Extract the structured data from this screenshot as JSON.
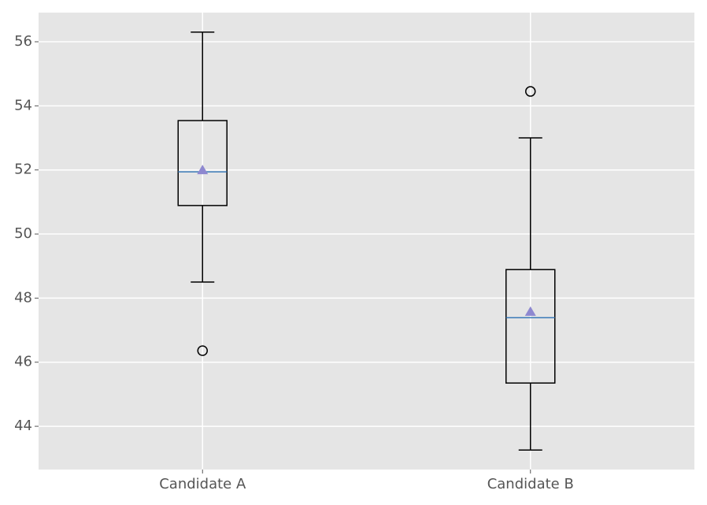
{
  "chart_data": {
    "type": "box",
    "categories": [
      "Candidate A",
      "Candidate B"
    ],
    "boxes": [
      {
        "min": 48.5,
        "q1": 50.89,
        "median": 51.94,
        "q3": 53.54,
        "max": 56.3,
        "mean": 51.99,
        "outliers": [
          46.36
        ]
      },
      {
        "min": 43.26,
        "q1": 45.35,
        "median": 47.39,
        "q3": 48.89,
        "max": 53.0,
        "mean": 47.57,
        "outliers": [
          54.45
        ]
      }
    ],
    "box_color": "#000000",
    "median_color": "#3a7ab8",
    "mean_color": "#8e88d0",
    "background": "#e5e5e5",
    "grid": true,
    "ylim": [
      42.65,
      56.91
    ],
    "yticks": [
      44,
      46,
      48,
      50,
      52,
      54,
      56
    ]
  }
}
